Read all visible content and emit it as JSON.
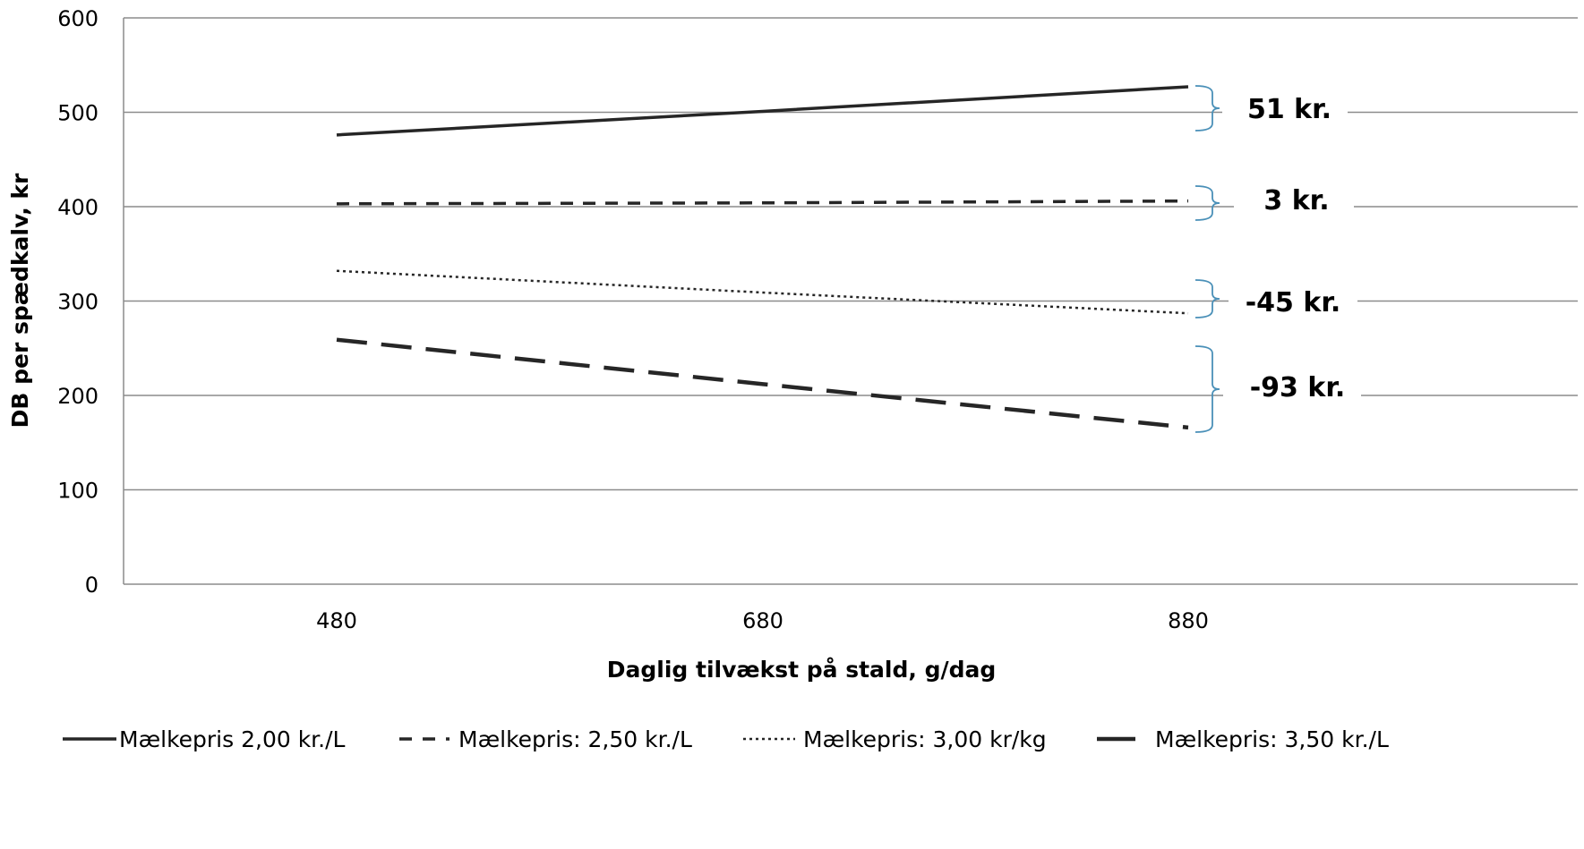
{
  "chart_data": {
    "type": "line",
    "ylabel": "DB per spædkalv, kr",
    "xlabel": "Daglig tilvækst på stald, g/dag",
    "ylim": [
      0,
      600
    ],
    "yticks": [
      0,
      100,
      200,
      300,
      400,
      500,
      600
    ],
    "x": [
      480,
      680,
      880
    ],
    "xticks": [
      "480",
      "680",
      "880"
    ],
    "grid": true,
    "legend_position": "bottom",
    "series": [
      {
        "name": "Mælkepris 2,00 kr./L",
        "style": "solid",
        "values": [
          476,
          501,
          527
        ],
        "annotation": "51 kr."
      },
      {
        "name": "Mælkepris: 2,50 kr./L",
        "style": "dashed",
        "values": [
          403,
          404,
          406
        ],
        "annotation": "3 kr."
      },
      {
        "name": "Mælkepris: 3,00 kr/kg",
        "style": "dotted",
        "values": [
          332,
          309,
          287
        ],
        "annotation": "-45 kr."
      },
      {
        "name": "Mælkepris: 3,50 kr./L",
        "style": "longdash",
        "values": [
          259,
          212,
          166
        ],
        "annotation": "-93 kr."
      }
    ],
    "colors": {
      "line": "#262626",
      "grid": "#8c8c8c",
      "brace": "#4a90b8"
    }
  }
}
